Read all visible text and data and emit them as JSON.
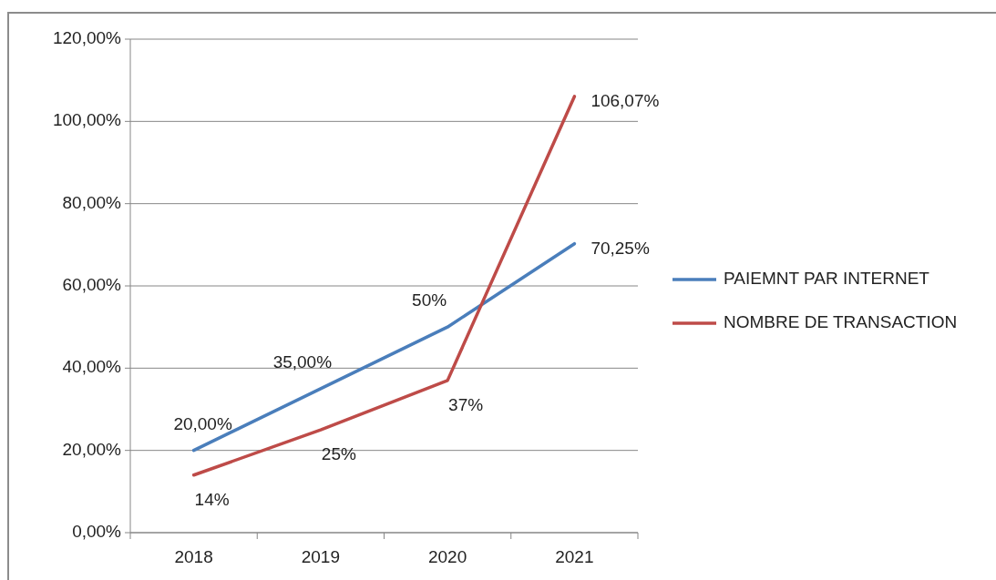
{
  "chart_data": {
    "type": "line",
    "categories": [
      "2018",
      "2019",
      "2020",
      "2021"
    ],
    "series": [
      {
        "name": "PAIEMNT PAR INTERNET",
        "color": "#4a7ebb",
        "values": [
          20,
          35,
          50,
          70.25
        ],
        "value_labels": [
          "20,00%",
          "35,00%",
          "50%",
          "70,25%"
        ]
      },
      {
        "name": "NOMBRE DE TRANSACTION",
        "color": "#be4b48",
        "values": [
          14,
          25,
          37,
          106.07
        ],
        "value_labels": [
          "14%",
          "25%",
          "37%",
          "106,07%"
        ]
      }
    ],
    "ylim": [
      0,
      120
    ],
    "yticks": [
      {
        "value": 0,
        "label": "0,00%"
      },
      {
        "value": 20,
        "label": "20,00%"
      },
      {
        "value": 40,
        "label": "40,00%"
      },
      {
        "value": 60,
        "label": "60,00%"
      },
      {
        "value": 80,
        "label": "80,00%"
      },
      {
        "value": 100,
        "label": "100,00%"
      },
      {
        "value": 120,
        "label": "120,00%"
      }
    ],
    "grid": "y",
    "legend": "right",
    "marker": "none",
    "line_style": "solid"
  }
}
